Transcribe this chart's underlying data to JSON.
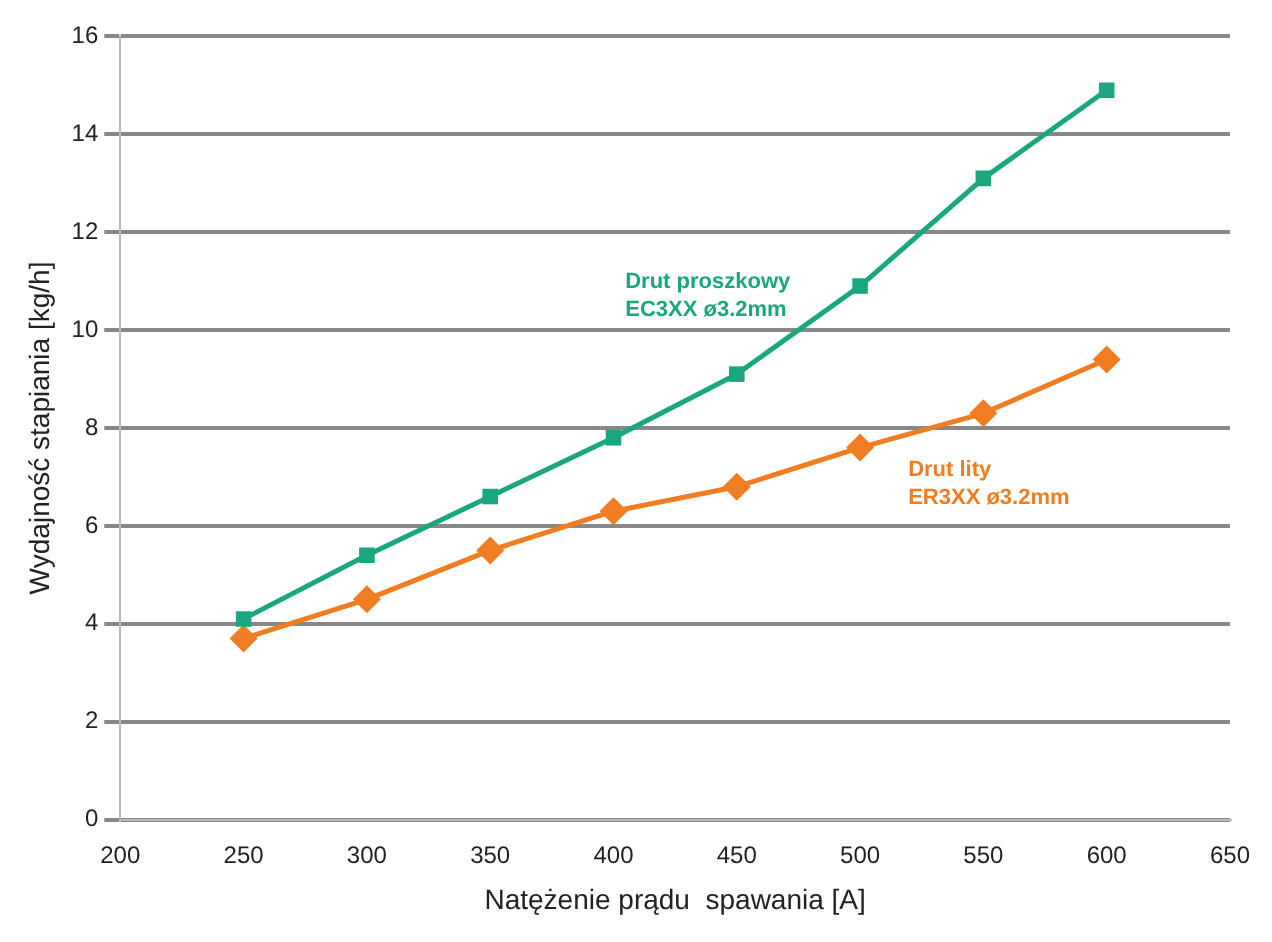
{
  "chart_data": {
    "type": "line",
    "xlabel": "Natężenie prądu  spawania [A]",
    "ylabel": "Wydajność stapiania [kg/h]",
    "x": [
      250,
      300,
      350,
      400,
      450,
      500,
      550,
      600
    ],
    "series": [
      {
        "name": "Drut proszkowy\nEC3XX ø3.2mm",
        "color": "#1aa77f",
        "marker": "square",
        "values": [
          4.1,
          5.4,
          6.6,
          7.8,
          9.1,
          10.9,
          13.1,
          14.9
        ]
      },
      {
        "name": "Drut lity\nER3XX ø3.2mm",
        "color": "#f07d22",
        "marker": "diamond",
        "values": [
          3.7,
          4.5,
          5.5,
          6.3,
          6.8,
          7.6,
          8.3,
          9.4
        ]
      }
    ],
    "xlim": [
      200,
      650
    ],
    "xticks": [
      200,
      250,
      300,
      350,
      400,
      450,
      500,
      550,
      600,
      650
    ],
    "ylim": [
      0,
      16
    ],
    "yticks": [
      0,
      2,
      4,
      6,
      8,
      10,
      12,
      14,
      16
    ],
    "grid": "y",
    "legend": false,
    "line_style": "solid"
  }
}
